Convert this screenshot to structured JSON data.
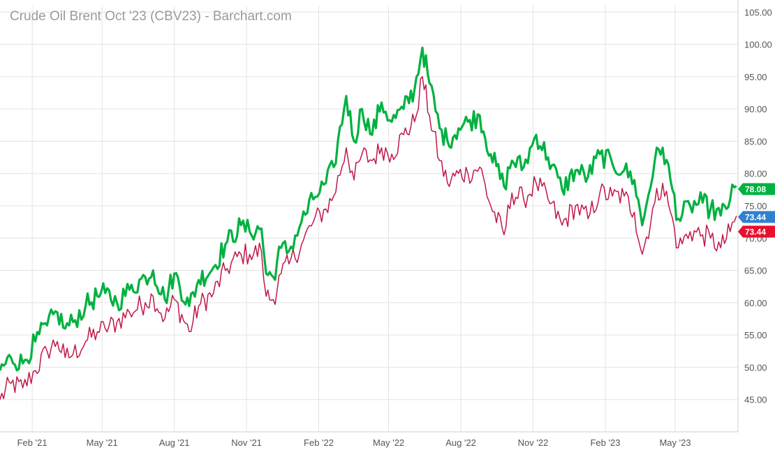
{
  "chart_data": {
    "type": "line",
    "title": "Crude Oil Brent Oct '23 (CBV23) - Barchart.com",
    "y_ticks": [
      "105.00",
      "100.00",
      "95.00",
      "90.00",
      "85.00",
      "80.00",
      "75.00",
      "70.00",
      "65.00",
      "60.00",
      "55.00",
      "50.00",
      "45.00"
    ],
    "y_tick_values": [
      105,
      100,
      95,
      90,
      85,
      80,
      75,
      70,
      65,
      60,
      55,
      50,
      45
    ],
    "x_ticks": [
      "Feb '21",
      "May '21",
      "Aug '21",
      "Nov '21",
      "Feb '22",
      "May '22",
      "Aug '22",
      "Nov '22",
      "Feb '23",
      "May '23"
    ],
    "x_tick_dates": [
      "2021-02-01",
      "2021-05-01",
      "2021-08-01",
      "2021-11-01",
      "2022-02-01",
      "2022-05-01",
      "2022-08-01",
      "2022-11-01",
      "2023-02-01",
      "2023-05-01"
    ],
    "ylim": [
      40,
      106
    ],
    "xlim": [
      "2020-12-22",
      "2023-07-20"
    ],
    "grid": true,
    "series": [
      {
        "color": "#00b140",
        "last_value_label": "78.08",
        "points": [
          [
            "2020-12-22",
            49.5
          ],
          [
            "2021-01-05",
            51.5
          ],
          [
            "2021-01-20",
            50.6
          ],
          [
            "2021-02-05",
            54.0
          ],
          [
            "2021-02-20",
            56.5
          ],
          [
            "2021-03-05",
            58.5
          ],
          [
            "2021-03-15",
            56.0
          ],
          [
            "2021-03-25",
            57.0
          ],
          [
            "2021-04-10",
            59.5
          ],
          [
            "2021-04-25",
            61.0
          ],
          [
            "2021-05-05",
            61.5
          ],
          [
            "2021-05-20",
            60.0
          ],
          [
            "2021-06-05",
            62.0
          ],
          [
            "2021-06-25",
            64.0
          ],
          [
            "2021-07-05",
            65.0
          ],
          [
            "2021-07-20",
            60.5
          ],
          [
            "2021-08-01",
            64.5
          ],
          [
            "2021-08-20",
            59.5
          ],
          [
            "2021-09-01",
            63.5
          ],
          [
            "2021-09-20",
            65.5
          ],
          [
            "2021-10-05",
            69.0
          ],
          [
            "2021-10-25",
            72.0
          ],
          [
            "2021-11-05",
            71.0
          ],
          [
            "2021-11-20",
            71.5
          ],
          [
            "2021-11-26",
            64.5
          ],
          [
            "2021-12-05",
            64.0
          ],
          [
            "2021-12-15",
            68.5
          ],
          [
            "2021-12-25",
            68.0
          ],
          [
            "2022-01-10",
            72.5
          ],
          [
            "2022-01-25",
            76.0
          ],
          [
            "2022-02-10",
            78.5
          ],
          [
            "2022-02-20",
            81.0
          ],
          [
            "2022-03-08",
            92.0
          ],
          [
            "2022-03-18",
            85.0
          ],
          [
            "2022-03-28",
            90.0
          ],
          [
            "2022-04-10",
            86.0
          ],
          [
            "2022-04-22",
            91.0
          ],
          [
            "2022-05-05",
            88.0
          ],
          [
            "2022-05-20",
            90.0
          ],
          [
            "2022-06-03",
            93.0
          ],
          [
            "2022-06-13",
            99.5
          ],
          [
            "2022-06-22",
            94.0
          ],
          [
            "2022-07-05",
            87.0
          ],
          [
            "2022-07-15",
            85.0
          ],
          [
            "2022-07-29",
            87.0
          ],
          [
            "2022-08-10",
            88.0
          ],
          [
            "2022-08-25",
            89.0
          ],
          [
            "2022-09-08",
            83.0
          ],
          [
            "2022-09-25",
            78.0
          ],
          [
            "2022-10-05",
            82.0
          ],
          [
            "2022-10-20",
            81.0
          ],
          [
            "2022-11-05",
            86.0
          ],
          [
            "2022-11-20",
            82.5
          ],
          [
            "2022-12-08",
            77.5
          ],
          [
            "2022-12-25",
            80.5
          ],
          [
            "2023-01-10",
            79.5
          ],
          [
            "2023-01-25",
            83.0
          ],
          [
            "2023-02-10",
            81.5
          ],
          [
            "2023-02-25",
            80.5
          ],
          [
            "2023-03-10",
            79.0
          ],
          [
            "2023-03-20",
            72.0
          ],
          [
            "2023-04-05",
            82.0
          ],
          [
            "2023-04-15",
            84.0
          ],
          [
            "2023-04-25",
            79.0
          ],
          [
            "2023-05-05",
            73.0
          ],
          [
            "2023-05-20",
            75.0
          ],
          [
            "2023-06-05",
            75.5
          ],
          [
            "2023-06-15",
            74.5
          ],
          [
            "2023-06-28",
            73.5
          ],
          [
            "2023-07-10",
            76.0
          ],
          [
            "2023-07-18",
            78.08
          ]
        ]
      },
      {
        "color": "#c01848",
        "last_value_label": "73.44",
        "points": [
          [
            "2020-12-22",
            45.0
          ],
          [
            "2021-01-05",
            47.5
          ],
          [
            "2021-01-20",
            46.8
          ],
          [
            "2021-02-05",
            49.5
          ],
          [
            "2021-02-20",
            52.5
          ],
          [
            "2021-03-05",
            54.0
          ],
          [
            "2021-03-15",
            51.5
          ],
          [
            "2021-03-25",
            52.0
          ],
          [
            "2021-04-10",
            54.0
          ],
          [
            "2021-04-25",
            55.5
          ],
          [
            "2021-05-05",
            56.0
          ],
          [
            "2021-05-20",
            57.0
          ],
          [
            "2021-06-05",
            58.5
          ],
          [
            "2021-06-25",
            60.0
          ],
          [
            "2021-07-05",
            61.0
          ],
          [
            "2021-07-20",
            57.5
          ],
          [
            "2021-08-01",
            60.5
          ],
          [
            "2021-08-20",
            55.5
          ],
          [
            "2021-09-01",
            59.5
          ],
          [
            "2021-09-20",
            61.5
          ],
          [
            "2021-10-05",
            65.0
          ],
          [
            "2021-10-25",
            67.5
          ],
          [
            "2021-11-05",
            67.5
          ],
          [
            "2021-11-20",
            68.0
          ],
          [
            "2021-11-26",
            61.0
          ],
          [
            "2021-12-05",
            60.5
          ],
          [
            "2021-12-15",
            64.5
          ],
          [
            "2021-12-25",
            66.0
          ],
          [
            "2022-01-10",
            69.0
          ],
          [
            "2022-01-25",
            72.5
          ],
          [
            "2022-02-10",
            74.5
          ],
          [
            "2022-02-20",
            76.5
          ],
          [
            "2022-03-08",
            84.0
          ],
          [
            "2022-03-18",
            79.0
          ],
          [
            "2022-03-28",
            83.0
          ],
          [
            "2022-04-10",
            82.0
          ],
          [
            "2022-04-22",
            84.0
          ],
          [
            "2022-05-05",
            83.0
          ],
          [
            "2022-05-20",
            86.0
          ],
          [
            "2022-06-03",
            88.0
          ],
          [
            "2022-06-13",
            95.0
          ],
          [
            "2022-06-22",
            89.0
          ],
          [
            "2022-07-05",
            82.0
          ],
          [
            "2022-07-15",
            78.5
          ],
          [
            "2022-07-29",
            80.0
          ],
          [
            "2022-08-10",
            80.0
          ],
          [
            "2022-08-25",
            81.0
          ],
          [
            "2022-09-08",
            75.0
          ],
          [
            "2022-09-25",
            70.5
          ],
          [
            "2022-10-05",
            77.0
          ],
          [
            "2022-10-20",
            76.0
          ],
          [
            "2022-11-05",
            78.5
          ],
          [
            "2022-11-20",
            76.0
          ],
          [
            "2022-12-08",
            72.0
          ],
          [
            "2022-12-25",
            75.0
          ],
          [
            "2023-01-10",
            73.0
          ],
          [
            "2023-01-25",
            77.0
          ],
          [
            "2023-02-10",
            76.5
          ],
          [
            "2023-02-25",
            76.5
          ],
          [
            "2023-03-10",
            74.0
          ],
          [
            "2023-03-20",
            67.5
          ],
          [
            "2023-04-05",
            75.5
          ],
          [
            "2023-04-15",
            78.5
          ],
          [
            "2023-04-25",
            74.0
          ],
          [
            "2023-05-05",
            68.5
          ],
          [
            "2023-05-20",
            71.0
          ],
          [
            "2023-06-05",
            70.5
          ],
          [
            "2023-06-15",
            70.0
          ],
          [
            "2023-06-28",
            68.5
          ],
          [
            "2023-07-10",
            71.0
          ],
          [
            "2023-07-18",
            73.44
          ]
        ]
      }
    ],
    "badges": [
      {
        "label": "78.08",
        "color": "#00b140",
        "value": 78.08
      },
      {
        "label": "73.44",
        "color": "#2f80d0",
        "value": 73.44
      },
      {
        "label": "73.44",
        "color": "#e8102e",
        "value": 73.44
      }
    ]
  }
}
